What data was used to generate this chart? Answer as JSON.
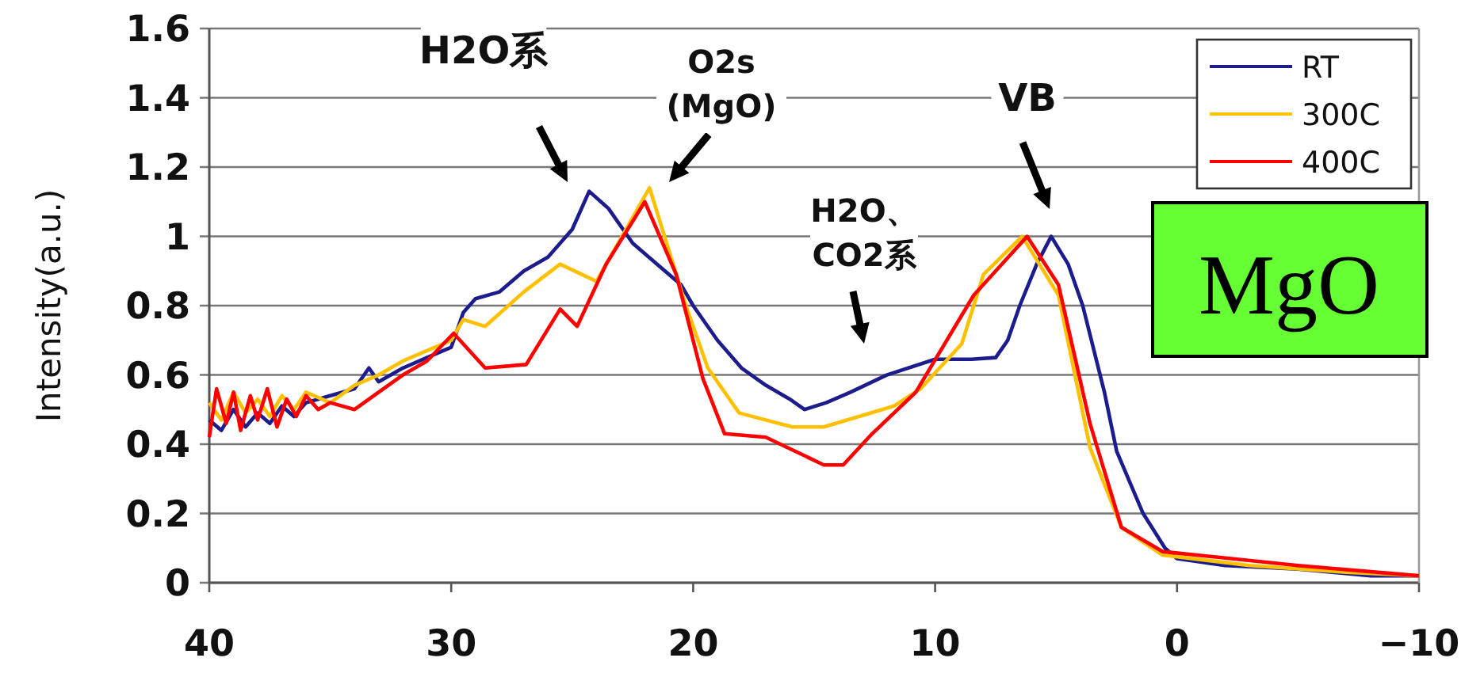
{
  "chart_data": {
    "type": "line",
    "ylabel": "Intensity(a.u.)",
    "xlim": [
      40,
      -10
    ],
    "ylim": [
      0,
      1.6
    ],
    "xticks": [
      40,
      30,
      20,
      10,
      0,
      {
        "value": -10,
        "label": "−10"
      }
    ],
    "yticks": [
      0,
      0.2,
      0.4,
      0.6,
      0.8,
      1,
      1.2,
      1.4,
      1.6
    ],
    "grid": "y",
    "legend": "top right",
    "line_style": "solid",
    "marker": "none",
    "annotations": [
      "H2O系",
      "O2s\n(MgO)",
      "H2O、\nCO2系",
      "VB",
      "MgO"
    ],
    "series": [
      {
        "name": "RT",
        "color": "#1c1c8c",
        "x": [
          40,
          39.5,
          39,
          38.5,
          38,
          37.5,
          37,
          36.5,
          36,
          35,
          34,
          33.4,
          33,
          32,
          31,
          30,
          29.5,
          29,
          28,
          27,
          26,
          25,
          24.3,
          23.5,
          22.5,
          21.5,
          20.5,
          20,
          19,
          18,
          17,
          16,
          15.4,
          14.5,
          13.5,
          12,
          10,
          8.5,
          7.5,
          7,
          6.5,
          5.8,
          5.2,
          4.5,
          3.9,
          3,
          2.5,
          1.4,
          0.5,
          0,
          -2,
          -5,
          -8,
          -10
        ],
        "values": [
          0.47,
          0.44,
          0.5,
          0.45,
          0.49,
          0.46,
          0.51,
          0.48,
          0.52,
          0.54,
          0.56,
          0.62,
          0.58,
          0.62,
          0.65,
          0.68,
          0.78,
          0.82,
          0.84,
          0.9,
          0.94,
          1.02,
          1.13,
          1.08,
          0.98,
          0.92,
          0.86,
          0.8,
          0.7,
          0.62,
          0.57,
          0.53,
          0.5,
          0.52,
          0.55,
          0.6,
          0.645,
          0.645,
          0.65,
          0.7,
          0.8,
          0.92,
          1.0,
          0.92,
          0.8,
          0.55,
          0.38,
          0.2,
          0.1,
          0.07,
          0.05,
          0.04,
          0.02,
          0.02
        ]
      },
      {
        "name": "300C",
        "color": "#ffc000",
        "x": [
          40,
          39.5,
          39,
          38.5,
          38,
          37.5,
          37,
          36.5,
          36,
          35,
          34,
          33,
          32,
          31,
          30,
          29.5,
          28.6,
          27,
          25.5,
          24,
          21.8,
          20.3,
          19.4,
          18.1,
          15.9,
          14.6,
          11.7,
          10.6,
          8.9,
          8,
          6.4,
          4.9,
          3.6,
          2.3,
          0.6,
          -3,
          -7,
          -10
        ],
        "values": [
          0.52,
          0.47,
          0.55,
          0.49,
          0.53,
          0.48,
          0.54,
          0.5,
          0.55,
          0.52,
          0.57,
          0.6,
          0.64,
          0.67,
          0.7,
          0.76,
          0.74,
          0.84,
          0.92,
          0.87,
          1.14,
          0.8,
          0.62,
          0.49,
          0.45,
          0.45,
          0.51,
          0.56,
          0.69,
          0.89,
          1.0,
          0.83,
          0.39,
          0.16,
          0.08,
          0.05,
          0.03,
          0.02
        ]
      },
      {
        "name": "400C",
        "color": "#ff0000",
        "x": [
          40,
          39.7,
          39.3,
          39,
          38.7,
          38.3,
          38,
          37.6,
          37.2,
          36.8,
          36.4,
          36,
          35.5,
          35,
          34,
          33,
          32,
          31,
          29.9,
          28.6,
          26.9,
          25.5,
          24.8,
          23.6,
          22,
          20.7,
          19.6,
          18.7,
          17,
          14.6,
          13.8,
          12.6,
          10.8,
          8.4,
          6.2,
          4.9,
          3.6,
          2.3,
          0.6,
          -5,
          -10
        ],
        "values": [
          0.42,
          0.56,
          0.46,
          0.55,
          0.44,
          0.54,
          0.47,
          0.56,
          0.45,
          0.53,
          0.48,
          0.54,
          0.5,
          0.52,
          0.5,
          0.55,
          0.6,
          0.64,
          0.72,
          0.62,
          0.63,
          0.79,
          0.74,
          0.92,
          1.1,
          0.89,
          0.59,
          0.43,
          0.42,
          0.34,
          0.34,
          0.43,
          0.55,
          0.83,
          1.0,
          0.86,
          0.46,
          0.16,
          0.09,
          0.05,
          0.02
        ]
      }
    ]
  }
}
